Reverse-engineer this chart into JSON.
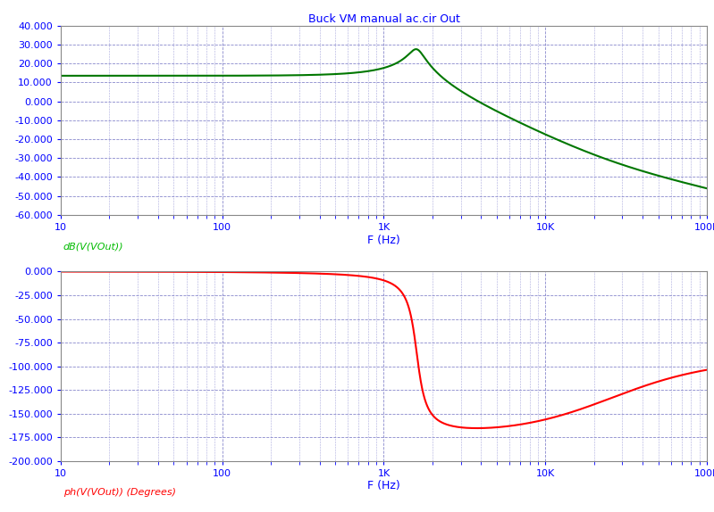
{
  "title": "Buck VM manual ac.cir Out",
  "title_color": "#0000FF",
  "title_fontsize": 9,
  "bg_color": "#FFFFFF",
  "plot_bg_color": "#FFFFFF",
  "grid_major_color": "#8888CC",
  "grid_minor_color": "#AAAADD",
  "grid_style": "--",
  "freq_min": 10,
  "freq_max": 100000,
  "mag_ylim": [
    -60,
    40
  ],
  "mag_yticks": [
    -60,
    -50,
    -40,
    -30,
    -20,
    -10,
    0,
    10,
    20,
    30,
    40
  ],
  "mag_ylabel": "dB(V(VOut))",
  "mag_ylabel_color": "#00BB00",
  "phase_ylim": [
    -200,
    0
  ],
  "phase_yticks": [
    -200,
    -175,
    -150,
    -125,
    -100,
    -75,
    -50,
    -25,
    0
  ],
  "phase_ylabel": "ph(V(VOut)) (Degrees)",
  "phase_ylabel_color": "#FF0000",
  "xlabel": "F (Hz)",
  "xlabel_color": "#0000FF",
  "xlabel_fontsize": 9,
  "tick_color": "#0000FF",
  "tick_fontsize": 8,
  "mag_line_color": "#007700",
  "phase_line_color": "#FF0000",
  "line_width": 1.5,
  "LC_freq": 1600,
  "LC_Q": 5.0,
  "ESR_zero_freq": 25000,
  "dc_gain_db": 13.5,
  "spine_color": "#888888"
}
